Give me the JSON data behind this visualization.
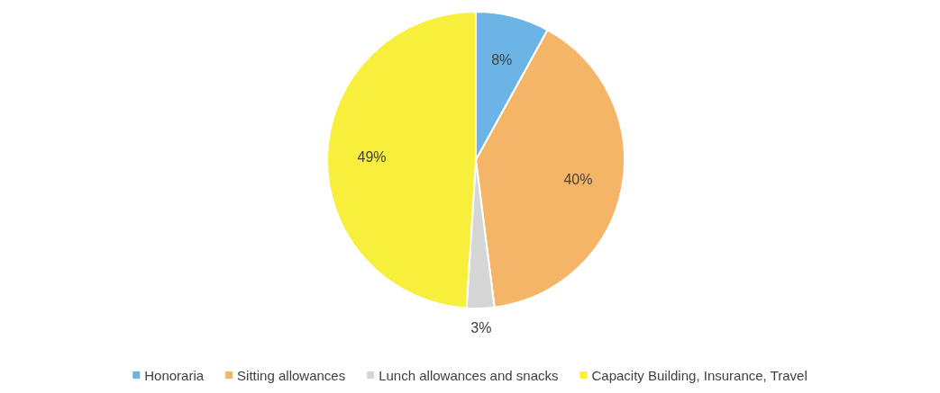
{
  "chart_data": {
    "type": "pie",
    "categories": [
      "Honoraria",
      "Sitting allowances",
      "Lunch allowances and snacks",
      "Capacity Building, Insurance, Travel"
    ],
    "values": [
      8,
      40,
      3,
      49
    ],
    "colors": [
      "#6cb4e6",
      "#f5b566",
      "#d6d6d6",
      "#f8ef3c"
    ],
    "value_labels": [
      "8%",
      "40%",
      "3%",
      "49%"
    ],
    "legend": "bottom"
  }
}
